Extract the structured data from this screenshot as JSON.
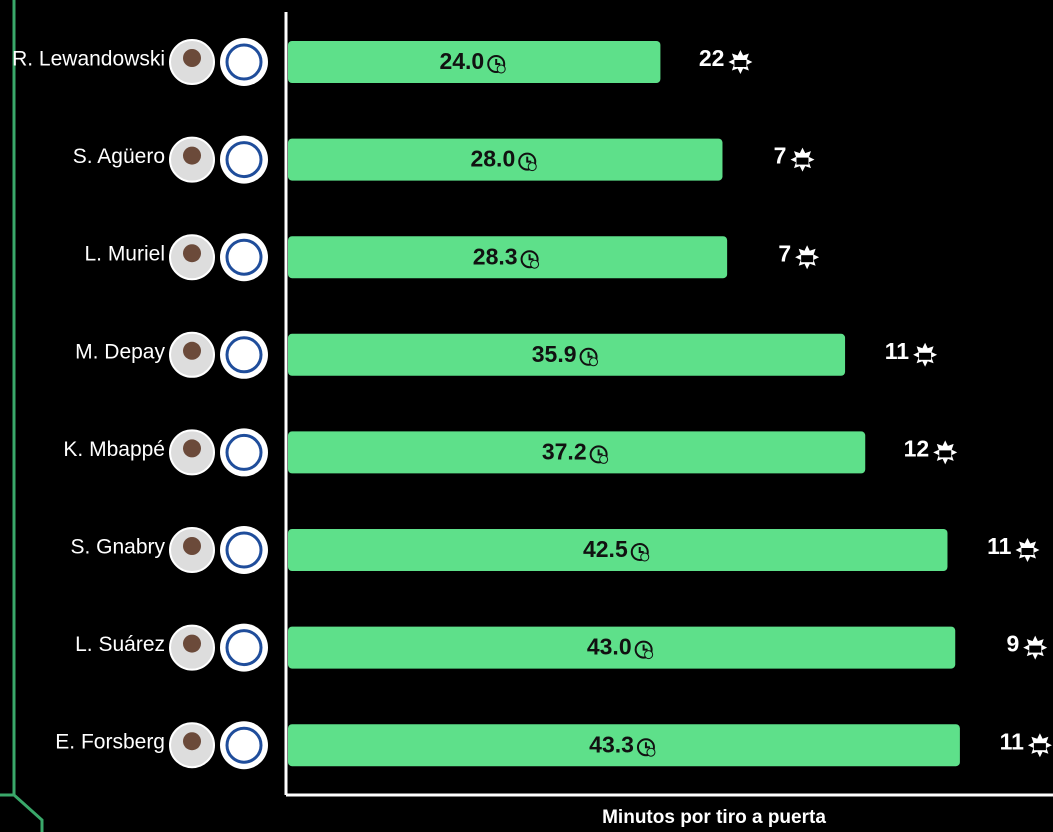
{
  "chart_data": {
    "type": "bar",
    "orientation": "horizontal",
    "xlabel": "Minutos por tiro a puerta",
    "categories": [
      "R. Lewandowski",
      "S. Agüero",
      "L. Muriel",
      "M. Depay",
      "K. Mbappé",
      "S. Gnabry",
      "L. Suárez",
      "E. Forsberg"
    ],
    "values": [
      24.0,
      28.0,
      28.3,
      35.9,
      37.2,
      42.5,
      43.0,
      43.3
    ],
    "value_labels": [
      "24.0",
      "28.0",
      "28.3",
      "35.9",
      "37.2",
      "42.5",
      "43.0",
      "43.3"
    ],
    "counts": [
      22,
      7,
      7,
      11,
      12,
      11,
      9,
      11
    ],
    "color": "#5ee08a",
    "xlim": [
      0,
      49.3
    ]
  }
}
